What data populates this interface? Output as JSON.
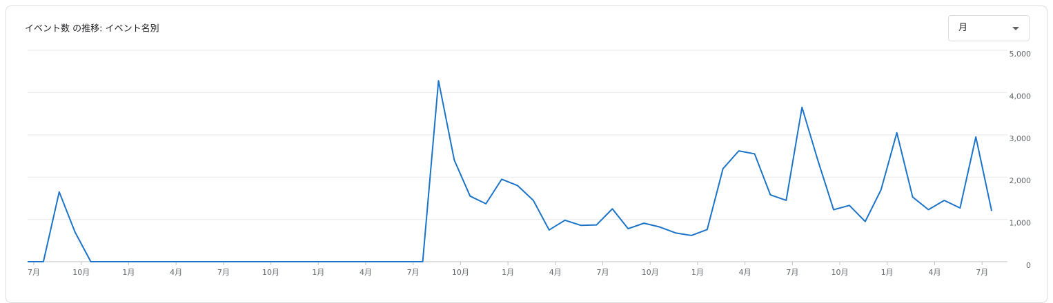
{
  "chart_data": {
    "type": "line",
    "title": "イベント数 の推移: イベント名別",
    "categories": [
      "7月",
      null,
      null,
      "10月",
      null,
      null,
      "1月",
      null,
      null,
      "4月",
      null,
      null,
      "7月",
      null,
      null,
      "10月",
      null,
      null,
      "1月",
      null,
      null,
      "4月",
      null,
      null,
      "7月",
      null,
      null,
      "10月",
      null,
      null,
      "1月",
      null,
      null,
      "4月",
      null,
      null,
      "7月",
      null,
      null,
      "10月",
      null,
      null,
      "1月",
      null,
      null,
      "4月",
      null,
      null,
      "7月",
      null,
      null,
      "10月",
      null,
      null,
      "1月",
      null,
      null,
      "4月",
      null,
      null,
      "7月",
      null
    ],
    "series": [
      {
        "color": "#1a73c8",
        "values": [
          0,
          0,
          1650,
          700,
          0,
          0,
          0,
          0,
          0,
          0,
          0,
          0,
          0,
          0,
          0,
          0,
          0,
          0,
          0,
          0,
          0,
          0,
          0,
          0,
          0,
          0,
          4280,
          2400,
          1550,
          1370,
          1950,
          1800,
          1450,
          750,
          980,
          860,
          870,
          1250,
          780,
          910,
          820,
          680,
          620,
          760,
          2200,
          2620,
          2550,
          1580,
          1450,
          3650,
          2400,
          1230,
          1330,
          950,
          1700,
          3050,
          1530,
          1230,
          1450,
          1270,
          2950,
          1200
        ]
      }
    ],
    "ylim": [
      0,
      5000
    ],
    "yticks": [
      0,
      {
        "value": 1000,
        "label": "1,000"
      },
      {
        "value": 2000,
        "label": "2,000"
      },
      {
        "value": 3000,
        "label": "3,000"
      },
      {
        "value": 4000,
        "label": "4,000"
      },
      {
        "value": 5000,
        "label": "5,000"
      }
    ],
    "grid": true
  },
  "controls": {
    "period": "月"
  }
}
